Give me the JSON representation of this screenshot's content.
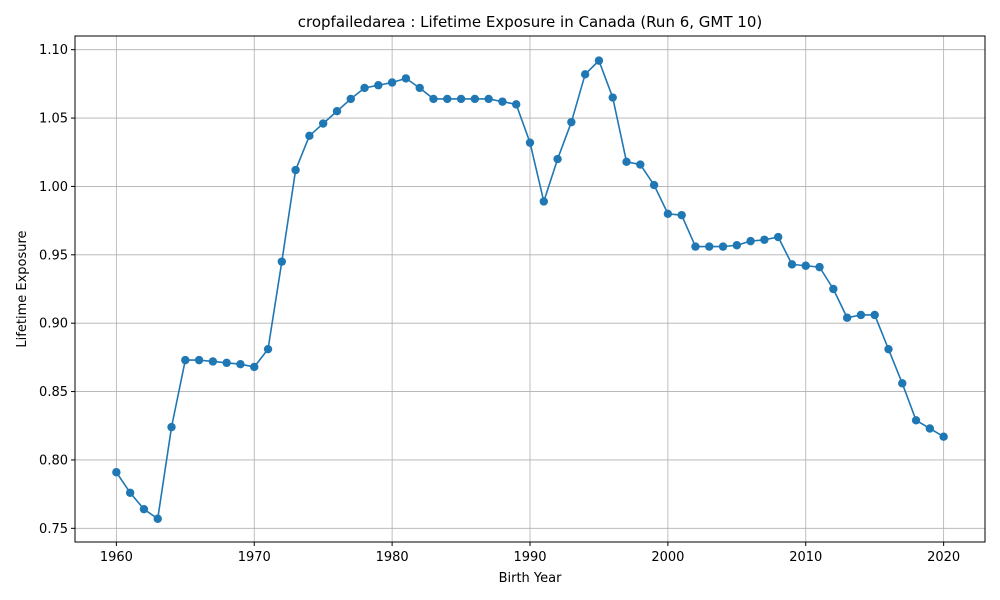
{
  "chart_data": {
    "type": "line",
    "title": "cropfailedarea : Lifetime Exposure in Canada (Run 6, GMT 10)",
    "xlabel": "Birth Year",
    "ylabel": "Lifetime Exposure",
    "xlim": [
      1957,
      2023
    ],
    "ylim": [
      0.74,
      1.11
    ],
    "grid": true,
    "line_color": "#1f77b4",
    "x_ticks": [
      1960,
      1970,
      1980,
      1990,
      2000,
      2010,
      2020
    ],
    "y_ticks": [
      0.75,
      0.8,
      0.85,
      0.9,
      0.95,
      1.0,
      1.05,
      1.1
    ],
    "x_tick_labels": [
      "1960",
      "1970",
      "1980",
      "1990",
      "2000",
      "2010",
      "2020"
    ],
    "y_tick_labels": [
      "0.75",
      "0.80",
      "0.85",
      "0.90",
      "0.95",
      "1.00",
      "1.05",
      "1.10"
    ],
    "x": [
      1960,
      1961,
      1962,
      1963,
      1964,
      1965,
      1966,
      1967,
      1968,
      1969,
      1970,
      1971,
      1972,
      1973,
      1974,
      1975,
      1976,
      1977,
      1978,
      1979,
      1980,
      1981,
      1982,
      1983,
      1984,
      1985,
      1986,
      1987,
      1988,
      1989,
      1990,
      1991,
      1992,
      1993,
      1994,
      1995,
      1996,
      1997,
      1998,
      1999,
      2000,
      2001,
      2002,
      2003,
      2004,
      2005,
      2006,
      2007,
      2008,
      2009,
      2010,
      2011,
      2012,
      2013,
      2014,
      2015,
      2016,
      2017,
      2018,
      2019,
      2020
    ],
    "y": [
      0.791,
      0.776,
      0.764,
      0.757,
      0.824,
      0.873,
      0.873,
      0.872,
      0.871,
      0.87,
      0.868,
      0.881,
      0.945,
      1.012,
      1.037,
      1.046,
      1.055,
      1.064,
      1.072,
      1.074,
      1.076,
      1.079,
      1.072,
      1.064,
      1.064,
      1.064,
      1.064,
      1.064,
      1.062,
      1.06,
      1.032,
      0.989,
      1.02,
      1.047,
      1.082,
      1.092,
      1.065,
      1.018,
      1.016,
      1.001,
      0.98,
      0.979,
      0.956,
      0.956,
      0.956,
      0.957,
      0.96,
      0.961,
      0.963,
      0.943,
      0.942,
      0.941,
      0.925,
      0.904,
      0.906,
      0.906,
      0.881,
      0.856,
      0.829,
      0.823,
      0.817
    ]
  }
}
